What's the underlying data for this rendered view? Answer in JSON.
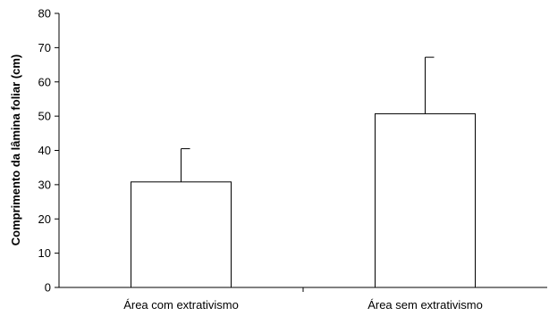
{
  "chart_data": {
    "type": "bar",
    "categories": [
      "Área com extrativismo",
      "Área sem extrativismo"
    ],
    "values": [
      30.8,
      50.7
    ],
    "error_upper": [
      40.5,
      67.2
    ],
    "title": "",
    "xlabel": "",
    "ylabel": "Comprimento da lâmina foliar (cm)",
    "ylim": [
      0,
      80
    ],
    "yticks": [
      0,
      10,
      20,
      30,
      40,
      50,
      60,
      70,
      80
    ],
    "grid": false,
    "legend": "none",
    "bar_fill": "#ffffff",
    "bar_stroke": "#000000"
  }
}
